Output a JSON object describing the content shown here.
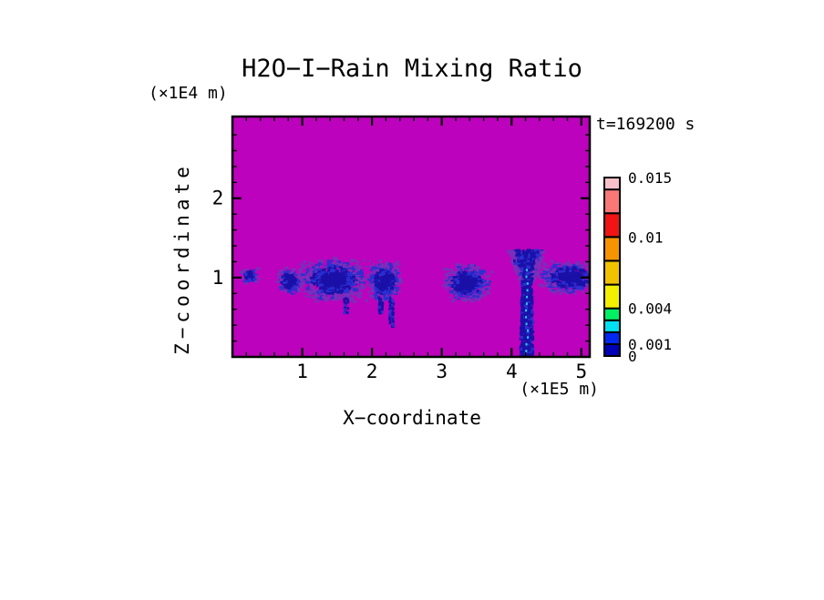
{
  "chart_data": {
    "type": "heatmap",
    "title": "H2O−I−Rain Mixing Ratio",
    "timestamp_label": "t=169200 s",
    "x_axis": {
      "label": "X−coordinate",
      "unit_label": "(×1E5 m)",
      "min": 0,
      "max": 5.12,
      "major_ticks": [
        1,
        2,
        3,
        4,
        5
      ],
      "tick_labels": [
        "1",
        "2",
        "3",
        "4",
        "5"
      ],
      "minor_step": 0.2
    },
    "z_axis": {
      "label": "Z−coordinate",
      "unit_label": "(×1E4 m)",
      "min": 0,
      "max": 3.03,
      "major_ticks": [
        1,
        2
      ],
      "labeled_ticks": [
        {
          "value": 1,
          "text": "1"
        },
        {
          "value": 2,
          "text": "2"
        }
      ],
      "minor_step": 0.2
    },
    "field_background_color": "#BC02BC",
    "colorbar": {
      "levels": [
        0,
        0.001,
        0.002,
        0.003,
        0.004,
        0.006,
        0.008,
        0.01,
        0.012,
        0.014,
        0.015
      ],
      "colors": [
        "#0000B4",
        "#0028F0",
        "#00E0F0",
        "#00F064",
        "#F0F000",
        "#F0C200",
        "#F59300",
        "#F01414",
        "#F87878",
        "#F8C0C8"
      ],
      "labels": [
        {
          "value": 0,
          "text": "0"
        },
        {
          "value": 0.001,
          "text": "0.001"
        },
        {
          "value": 0.004,
          "text": "0.004"
        },
        {
          "value": 0.01,
          "text": "0.01"
        },
        {
          "value": 0.015,
          "text": "0.015"
        }
      ]
    },
    "speckle_colors": {
      "core": "#1A10A8",
      "mid": "#2B2FD0",
      "fringe": "#7A2EBB",
      "centerline": "#30C8E8"
    },
    "rain_patches": [
      {
        "cx": 0.25,
        "cz": 1.02,
        "rx": 0.1,
        "rz": 0.08,
        "n": 70
      },
      {
        "cx": 0.83,
        "cz": 0.95,
        "rx": 0.15,
        "rz": 0.13,
        "n": 170
      },
      {
        "cx": 1.45,
        "cz": 0.97,
        "rx": 0.38,
        "rz": 0.21,
        "n": 850
      },
      {
        "cx": 2.18,
        "cz": 0.95,
        "rx": 0.18,
        "rz": 0.2,
        "n": 430
      },
      {
        "cx": 3.37,
        "cz": 0.93,
        "rx": 0.26,
        "rz": 0.19,
        "n": 480
      },
      {
        "cx": 4.85,
        "cz": 1.0,
        "rx": 0.36,
        "rz": 0.16,
        "n": 540
      }
    ],
    "rain_streaks": [
      {
        "x": 2.28,
        "z1": 0.38,
        "z2": 0.74,
        "n": 55
      },
      {
        "x": 2.13,
        "z1": 0.55,
        "z2": 0.75,
        "n": 35
      },
      {
        "x": 1.63,
        "z1": 0.55,
        "z2": 0.74,
        "n": 28
      }
    ],
    "rain_column": {
      "cx": 4.22,
      "flare_z1": 0.92,
      "flare_z2": 1.34,
      "flare_halfwidth": 0.24,
      "column_halfwidth": 0.065,
      "flare_n": 750,
      "column_n": 650
    }
  }
}
